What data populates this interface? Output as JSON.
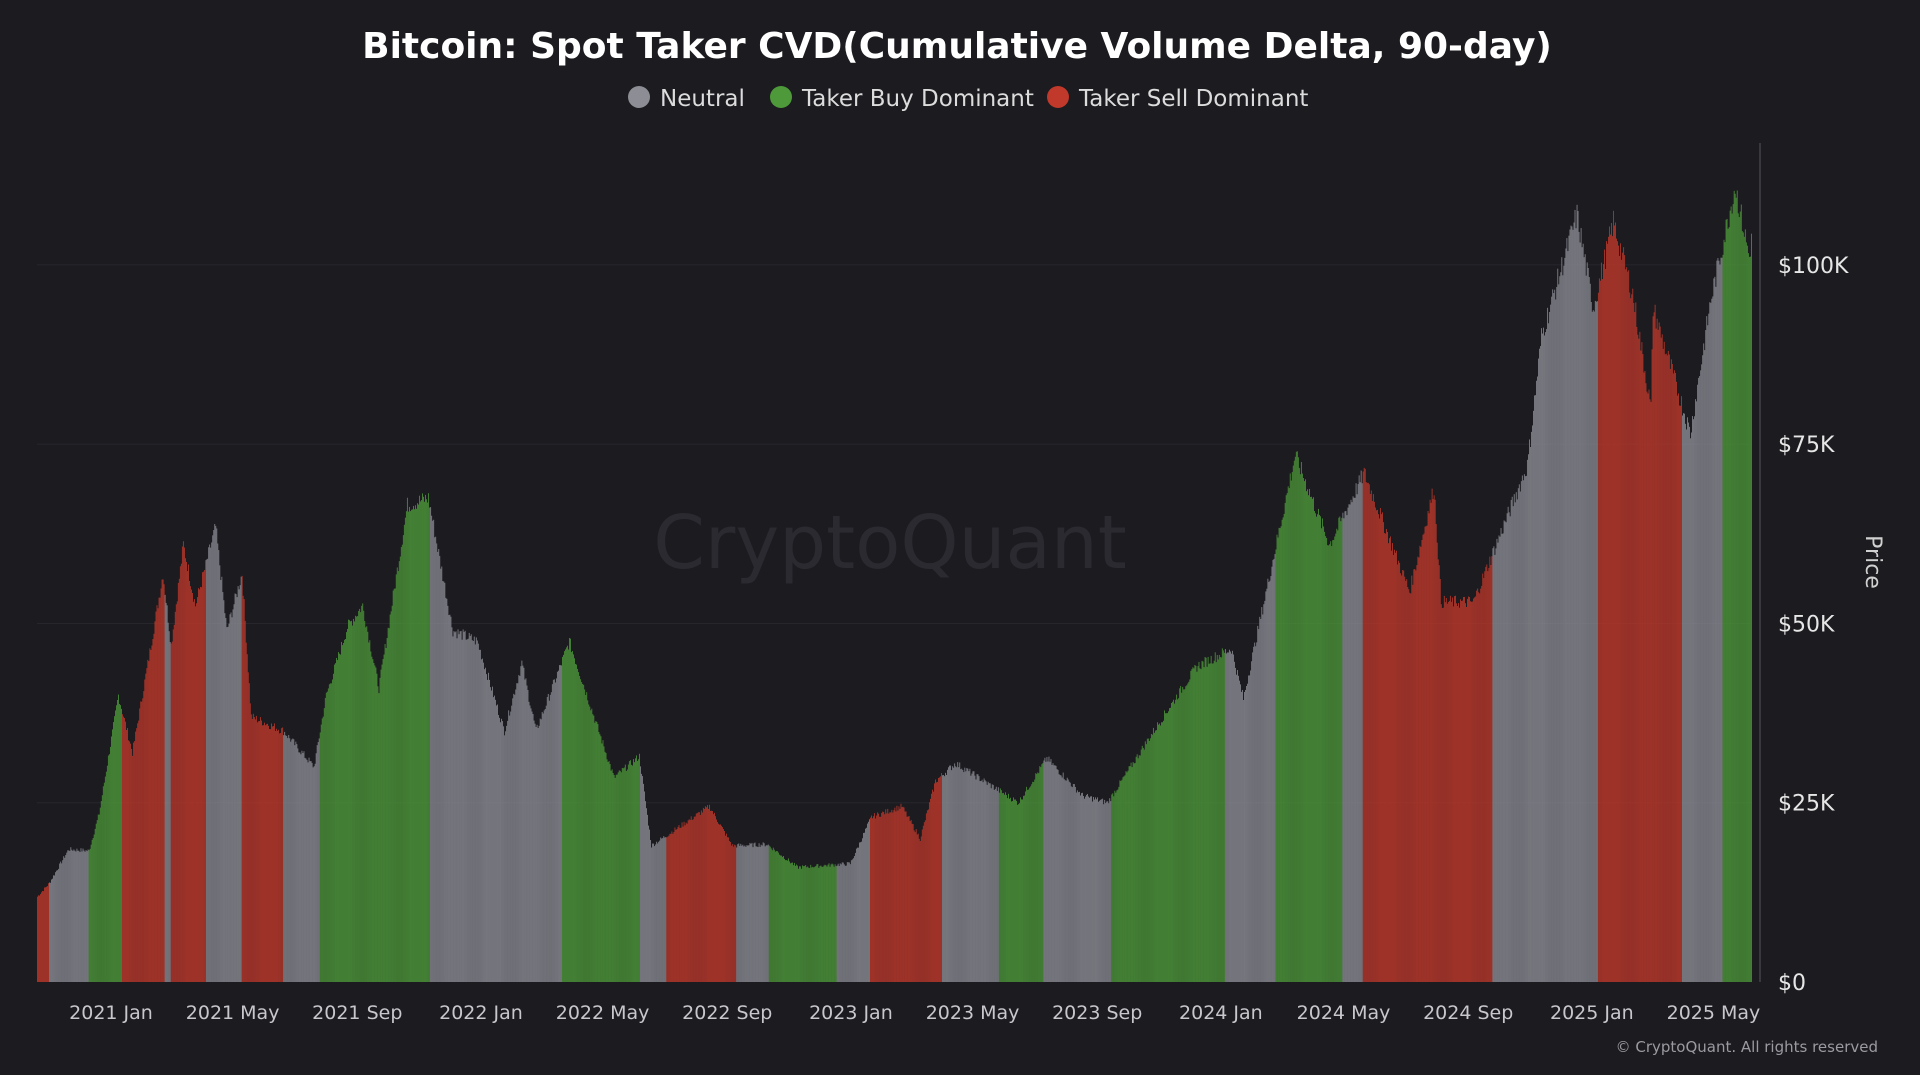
{
  "chart_data": {
    "type": "bar",
    "title": "Bitcoin: Spot Taker CVD(Cumulative Volume Delta, 90-day)",
    "ylabel": "Price",
    "ylim": [
      0,
      117000
    ],
    "y_ticks": [
      {
        "value": 0,
        "label": "$0"
      },
      {
        "value": 25000,
        "label": "$25K"
      },
      {
        "value": 50000,
        "label": "$50K"
      },
      {
        "value": 75000,
        "label": "$75K"
      },
      {
        "value": 100000,
        "label": "$100K"
      }
    ],
    "x_range": [
      "2020-10-20",
      "2025-06-08"
    ],
    "x_ticks": [
      {
        "date": "2021-01-01",
        "label": "2021 Jan"
      },
      {
        "date": "2021-05-01",
        "label": "2021 May"
      },
      {
        "date": "2021-09-01",
        "label": "2021 Sep"
      },
      {
        "date": "2022-01-01",
        "label": "2022 Jan"
      },
      {
        "date": "2022-05-01",
        "label": "2022 May"
      },
      {
        "date": "2022-09-01",
        "label": "2022 Sep"
      },
      {
        "date": "2023-01-01",
        "label": "2023 Jan"
      },
      {
        "date": "2023-05-01",
        "label": "2023 May"
      },
      {
        "date": "2023-09-01",
        "label": "2023 Sep"
      },
      {
        "date": "2024-01-01",
        "label": "2024 Jan"
      },
      {
        "date": "2024-05-01",
        "label": "2024 May"
      },
      {
        "date": "2024-09-01",
        "label": "2024 Sep"
      },
      {
        "date": "2025-01-01",
        "label": "2025 Jan"
      },
      {
        "date": "2025-05-01",
        "label": "2025 May"
      }
    ],
    "legend": {
      "placement": "top-center",
      "entries": [
        {
          "key": "neutral",
          "label": "Neutral",
          "color": "#8d8d96"
        },
        {
          "key": "buy",
          "label": "Taker Buy Dominant",
          "color": "#4e9a3a"
        },
        {
          "key": "sell",
          "label": "Taker Sell Dominant",
          "color": "#c0392b"
        }
      ]
    },
    "price_series": [
      [
        "2020-10-20",
        11900
      ],
      [
        "2020-11-01",
        13800
      ],
      [
        "2020-11-20",
        18500
      ],
      [
        "2020-12-10",
        18300
      ],
      [
        "2020-12-20",
        23500
      ],
      [
        "2021-01-08",
        40000
      ],
      [
        "2021-01-22",
        32000
      ],
      [
        "2021-02-08",
        46000
      ],
      [
        "2021-02-21",
        57000
      ],
      [
        "2021-03-01",
        47000
      ],
      [
        "2021-03-13",
        61000
      ],
      [
        "2021-03-25",
        52500
      ],
      [
        "2021-04-14",
        63500
      ],
      [
        "2021-04-25",
        49000
      ],
      [
        "2021-05-10",
        57000
      ],
      [
        "2021-05-19",
        37000
      ],
      [
        "2021-06-20",
        35000
      ],
      [
        "2021-07-20",
        30000
      ],
      [
        "2021-08-01",
        40000
      ],
      [
        "2021-08-22",
        49500
      ],
      [
        "2021-09-06",
        52500
      ],
      [
        "2021-09-22",
        41000
      ],
      [
        "2021-10-20",
        66500
      ],
      [
        "2021-11-10",
        67500
      ],
      [
        "2021-12-04",
        49000
      ],
      [
        "2021-12-28",
        47500
      ],
      [
        "2022-01-24",
        35000
      ],
      [
        "2022-02-10",
        44500
      ],
      [
        "2022-02-24",
        35000
      ],
      [
        "2022-03-29",
        47500
      ],
      [
        "2022-05-12",
        28500
      ],
      [
        "2022-06-06",
        31500
      ],
      [
        "2022-06-18",
        19000
      ],
      [
        "2022-08-14",
        24500
      ],
      [
        "2022-09-06",
        19000
      ],
      [
        "2022-10-10",
        19200
      ],
      [
        "2022-11-09",
        16000
      ],
      [
        "2022-12-31",
        16500
      ],
      [
        "2023-01-21",
        23000
      ],
      [
        "2023-02-20",
        24500
      ],
      [
        "2023-03-10",
        20000
      ],
      [
        "2023-03-25",
        28000
      ],
      [
        "2023-04-14",
        30500
      ],
      [
        "2023-06-15",
        25000
      ],
      [
        "2023-07-13",
        31200
      ],
      [
        "2023-08-17",
        26000
      ],
      [
        "2023-09-11",
        25000
      ],
      [
        "2023-10-24",
        34500
      ],
      [
        "2023-12-08",
        44000
      ],
      [
        "2024-01-11",
        46500
      ],
      [
        "2024-01-23",
        39500
      ],
      [
        "2024-03-14",
        73500
      ],
      [
        "2024-04-17",
        61000
      ],
      [
        "2024-05-21",
        71000
      ],
      [
        "2024-07-05",
        54500
      ],
      [
        "2024-07-29",
        69000
      ],
      [
        "2024-08-05",
        53000
      ],
      [
        "2024-09-06",
        53000
      ],
      [
        "2024-10-29",
        72000
      ],
      [
        "2024-11-12",
        90000
      ],
      [
        "2024-12-17",
        107000
      ],
      [
        "2025-01-02",
        94000
      ],
      [
        "2025-01-22",
        106000
      ],
      [
        "2025-02-10",
        96000
      ],
      [
        "2025-02-28",
        80000
      ],
      [
        "2025-03-02",
        94000
      ],
      [
        "2025-04-08",
        76500
      ],
      [
        "2025-04-28",
        95000
      ],
      [
        "2025-05-22",
        111000
      ],
      [
        "2025-06-05",
        101000
      ],
      [
        "2025-06-08",
        105500
      ]
    ],
    "regimes": [
      {
        "start": "2020-10-20",
        "end": "2020-11-01",
        "signal": "sell"
      },
      {
        "start": "2020-11-01",
        "end": "2020-12-10",
        "signal": "neutral"
      },
      {
        "start": "2020-12-10",
        "end": "2021-01-12",
        "signal": "buy"
      },
      {
        "start": "2021-01-12",
        "end": "2021-02-23",
        "signal": "sell"
      },
      {
        "start": "2021-02-23",
        "end": "2021-03-01",
        "signal": "neutral"
      },
      {
        "start": "2021-03-01",
        "end": "2021-04-05",
        "signal": "sell"
      },
      {
        "start": "2021-04-05",
        "end": "2021-05-10",
        "signal": "neutral"
      },
      {
        "start": "2021-05-10",
        "end": "2021-06-20",
        "signal": "sell"
      },
      {
        "start": "2021-06-20",
        "end": "2021-07-26",
        "signal": "neutral"
      },
      {
        "start": "2021-07-26",
        "end": "2021-09-20",
        "signal": "buy"
      },
      {
        "start": "2021-09-20",
        "end": "2021-11-12",
        "signal": "buy"
      },
      {
        "start": "2021-11-12",
        "end": "2022-03-22",
        "signal": "neutral"
      },
      {
        "start": "2022-03-22",
        "end": "2022-06-07",
        "signal": "buy"
      },
      {
        "start": "2022-06-07",
        "end": "2022-07-03",
        "signal": "neutral"
      },
      {
        "start": "2022-07-03",
        "end": "2022-09-10",
        "signal": "sell"
      },
      {
        "start": "2022-09-10",
        "end": "2022-10-12",
        "signal": "neutral"
      },
      {
        "start": "2022-10-12",
        "end": "2022-12-18",
        "signal": "buy"
      },
      {
        "start": "2022-12-18",
        "end": "2023-01-20",
        "signal": "neutral"
      },
      {
        "start": "2023-01-20",
        "end": "2023-04-01",
        "signal": "sell"
      },
      {
        "start": "2023-04-01",
        "end": "2023-05-27",
        "signal": "neutral"
      },
      {
        "start": "2023-05-27",
        "end": "2023-07-10",
        "signal": "buy"
      },
      {
        "start": "2023-07-10",
        "end": "2023-09-15",
        "signal": "neutral"
      },
      {
        "start": "2023-09-15",
        "end": "2024-01-05",
        "signal": "buy"
      },
      {
        "start": "2024-01-05",
        "end": "2024-02-24",
        "signal": "neutral"
      },
      {
        "start": "2024-02-24",
        "end": "2024-04-30",
        "signal": "buy"
      },
      {
        "start": "2024-04-30",
        "end": "2024-05-20",
        "signal": "neutral"
      },
      {
        "start": "2024-05-20",
        "end": "2024-09-25",
        "signal": "sell"
      },
      {
        "start": "2024-09-25",
        "end": "2025-01-07",
        "signal": "neutral"
      },
      {
        "start": "2025-01-07",
        "end": "2025-03-31",
        "signal": "sell"
      },
      {
        "start": "2025-03-31",
        "end": "2025-05-10",
        "signal": "neutral"
      },
      {
        "start": "2025-05-10",
        "end": "2025-06-08",
        "signal": "buy"
      }
    ],
    "grid": true
  },
  "watermark": "CryptoQuant",
  "copyright": "© CryptoQuant. All rights reserved"
}
